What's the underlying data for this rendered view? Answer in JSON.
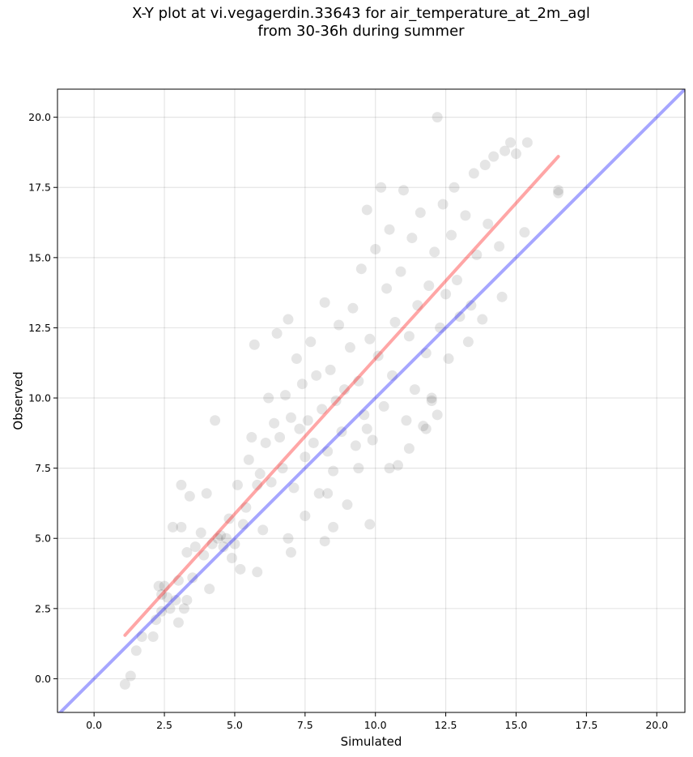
{
  "chart_data": {
    "type": "scatter",
    "title": "X-Y plot at vi.vegagerdin.33643 for air_temperature_at_2m_agl",
    "subtitle": "from 30-36h during summer",
    "xlabel": "Simulated",
    "ylabel": "Observed",
    "xlim": [
      -1.3,
      21.0
    ],
    "ylim": [
      -1.2,
      21.0
    ],
    "xticks": [
      "0.0",
      "2.5",
      "5.0",
      "7.5",
      "10.0",
      "12.5",
      "15.0",
      "17.5",
      "20.0"
    ],
    "yticks": [
      "0.0",
      "2.5",
      "5.0",
      "7.5",
      "10.0",
      "12.5",
      "15.0",
      "17.5",
      "20.0"
    ],
    "grid": true,
    "point_color": "#000000",
    "point_alpha": 0.1,
    "points_note": "approximate dense cloud of ~1500 points; representative sample",
    "points": [
      [
        1.1,
        -0.2
      ],
      [
        1.3,
        0.1
      ],
      [
        1.5,
        1.0
      ],
      [
        1.7,
        1.5
      ],
      [
        2.1,
        1.5
      ],
      [
        2.2,
        2.1
      ],
      [
        2.4,
        2.4
      ],
      [
        2.4,
        3.0
      ],
      [
        2.5,
        3.3
      ],
      [
        2.3,
        3.3
      ],
      [
        2.6,
        2.9
      ],
      [
        2.7,
        2.5
      ],
      [
        2.9,
        2.8
      ],
      [
        3.0,
        2.0
      ],
      [
        3.2,
        2.5
      ],
      [
        3.0,
        3.5
      ],
      [
        3.3,
        2.8
      ],
      [
        3.5,
        3.6
      ],
      [
        3.1,
        6.9
      ],
      [
        3.4,
        6.5
      ],
      [
        2.8,
        5.4
      ],
      [
        3.1,
        5.4
      ],
      [
        3.3,
        4.5
      ],
      [
        3.6,
        4.7
      ],
      [
        3.8,
        5.2
      ],
      [
        3.9,
        4.4
      ],
      [
        4.0,
        6.6
      ],
      [
        4.1,
        3.2
      ],
      [
        4.2,
        4.8
      ],
      [
        4.3,
        9.2
      ],
      [
        4.4,
        5.0
      ],
      [
        4.5,
        5.1
      ],
      [
        4.6,
        4.7
      ],
      [
        4.7,
        5.0
      ],
      [
        4.8,
        5.7
      ],
      [
        4.9,
        4.3
      ],
      [
        5.0,
        4.8
      ],
      [
        5.1,
        6.9
      ],
      [
        5.2,
        3.9
      ],
      [
        5.3,
        5.5
      ],
      [
        5.4,
        6.1
      ],
      [
        5.5,
        7.8
      ],
      [
        5.6,
        8.6
      ],
      [
        5.7,
        11.9
      ],
      [
        5.8,
        6.9
      ],
      [
        5.9,
        7.3
      ],
      [
        6.0,
        5.3
      ],
      [
        6.1,
        8.4
      ],
      [
        6.2,
        10.0
      ],
      [
        6.3,
        7.0
      ],
      [
        6.4,
        9.1
      ],
      [
        6.5,
        12.3
      ],
      [
        6.6,
        8.6
      ],
      [
        6.7,
        7.5
      ],
      [
        6.8,
        10.1
      ],
      [
        6.9,
        12.8
      ],
      [
        7.0,
        9.3
      ],
      [
        7.1,
        6.8
      ],
      [
        7.2,
        11.4
      ],
      [
        7.3,
        8.9
      ],
      [
        7.4,
        10.5
      ],
      [
        7.5,
        7.9
      ],
      [
        7.6,
        9.2
      ],
      [
        7.7,
        12.0
      ],
      [
        7.8,
        8.4
      ],
      [
        7.9,
        10.8
      ],
      [
        8.0,
        6.6
      ],
      [
        8.1,
        9.6
      ],
      [
        8.2,
        13.4
      ],
      [
        8.3,
        8.1
      ],
      [
        8.4,
        11.0
      ],
      [
        8.5,
        7.4
      ],
      [
        8.6,
        9.9
      ],
      [
        8.7,
        12.6
      ],
      [
        8.8,
        8.8
      ],
      [
        8.9,
        10.3
      ],
      [
        9.0,
        6.2
      ],
      [
        9.1,
        11.8
      ],
      [
        9.2,
        13.2
      ],
      [
        9.3,
        8.3
      ],
      [
        9.4,
        10.6
      ],
      [
        9.5,
        14.6
      ],
      [
        9.6,
        9.4
      ],
      [
        9.7,
        16.7
      ],
      [
        9.8,
        12.1
      ],
      [
        9.9,
        8.5
      ],
      [
        10.0,
        15.3
      ],
      [
        10.1,
        11.5
      ],
      [
        10.2,
        17.5
      ],
      [
        10.3,
        9.7
      ],
      [
        10.4,
        13.9
      ],
      [
        10.5,
        16.0
      ],
      [
        10.6,
        10.8
      ],
      [
        10.7,
        12.7
      ],
      [
        10.8,
        7.6
      ],
      [
        10.9,
        14.5
      ],
      [
        11.0,
        17.4
      ],
      [
        11.1,
        9.2
      ],
      [
        11.2,
        12.2
      ],
      [
        11.3,
        15.7
      ],
      [
        11.4,
        10.3
      ],
      [
        11.5,
        13.3
      ],
      [
        11.6,
        16.6
      ],
      [
        11.7,
        9.0
      ],
      [
        11.8,
        11.6
      ],
      [
        11.9,
        14.0
      ],
      [
        12.0,
        10.0
      ],
      [
        12.1,
        15.2
      ],
      [
        12.2,
        20.0
      ],
      [
        12.3,
        12.5
      ],
      [
        12.4,
        16.9
      ],
      [
        12.5,
        13.7
      ],
      [
        12.6,
        11.4
      ],
      [
        12.7,
        15.8
      ],
      [
        12.8,
        17.5
      ],
      [
        12.9,
        14.2
      ],
      [
        13.0,
        12.9
      ],
      [
        13.2,
        16.5
      ],
      [
        13.3,
        12.0
      ],
      [
        13.5,
        18.0
      ],
      [
        13.6,
        15.1
      ],
      [
        13.8,
        12.8
      ],
      [
        13.9,
        18.3
      ],
      [
        14.0,
        16.2
      ],
      [
        14.2,
        18.6
      ],
      [
        14.4,
        15.4
      ],
      [
        14.6,
        18.8
      ],
      [
        14.8,
        19.1
      ],
      [
        15.0,
        18.7
      ],
      [
        15.4,
        19.1
      ],
      [
        15.3,
        15.9
      ],
      [
        16.5,
        17.3
      ],
      [
        16.5,
        17.4
      ],
      [
        14.5,
        13.6
      ],
      [
        13.4,
        13.3
      ],
      [
        12.0,
        9.9
      ],
      [
        11.2,
        8.2
      ],
      [
        9.8,
        5.5
      ],
      [
        8.2,
        4.9
      ],
      [
        7.0,
        4.5
      ],
      [
        5.8,
        3.8
      ],
      [
        8.5,
        5.4
      ],
      [
        9.4,
        7.5
      ],
      [
        10.5,
        7.5
      ],
      [
        12.2,
        9.4
      ],
      [
        11.8,
        8.9
      ],
      [
        6.9,
        5.0
      ],
      [
        7.5,
        5.8
      ],
      [
        8.3,
        6.6
      ],
      [
        9.7,
        8.9
      ]
    ],
    "lines": [
      {
        "label": "",
        "color": "#ff0000",
        "alpha": 0.35,
        "x": [
          1.1,
          16.5
        ],
        "y": [
          1.55,
          18.6
        ]
      },
      {
        "label": "",
        "color": "#0000ff",
        "alpha": 0.35,
        "x": [
          -1.3,
          21.0
        ],
        "y": [
          -1.3,
          21.0
        ]
      }
    ]
  }
}
